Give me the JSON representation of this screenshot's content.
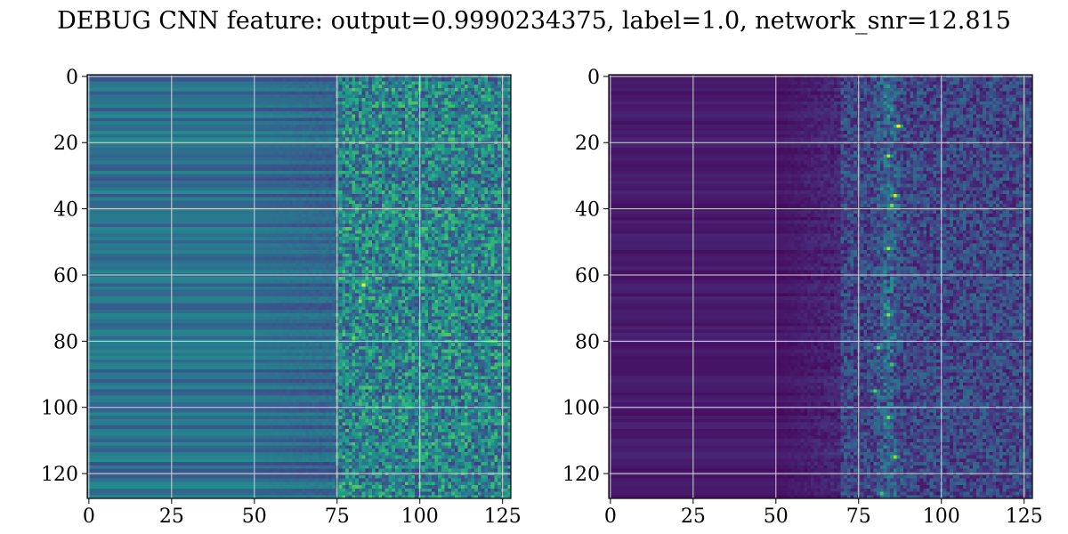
{
  "figure": {
    "title": "DEBUG CNN feature: output=0.9990234375, label=1.0, network_snr=12.815"
  },
  "chart_data": [
    {
      "type": "heatmap",
      "title": "",
      "xlabel": "",
      "ylabel": "",
      "xlim": [
        0,
        128
      ],
      "ylim": [
        128,
        0
      ],
      "xticks": [
        "0",
        "25",
        "50",
        "75",
        "100",
        "125"
      ],
      "yticks": [
        "0",
        "20",
        "40",
        "60",
        "80",
        "100",
        "120"
      ],
      "grid": true,
      "colormap": "viridis",
      "rows": 128,
      "cols": 128,
      "description_of_values": {
        "cols_0_to_70_level": 0.35,
        "noise_region_starts_col": 75,
        "noise_region_level": 0.45,
        "hot_spots": [
          {
            "row": 63,
            "col": 83,
            "value": 1.0
          },
          {
            "row": 68,
            "col": 82,
            "value": 0.85
          },
          {
            "row": 79,
            "col": 80,
            "value": 0.8
          },
          {
            "row": 3,
            "col": 88,
            "value": 0.7
          },
          {
            "row": 3,
            "col": 104,
            "value": 0.65
          },
          {
            "row": 42,
            "col": 88,
            "value": 0.7
          },
          {
            "row": 52,
            "col": 87,
            "value": 0.7
          },
          {
            "row": 103,
            "col": 88,
            "value": 0.75
          },
          {
            "row": 16,
            "col": 79,
            "value": 0.7
          }
        ]
      }
    },
    {
      "type": "heatmap",
      "title": "",
      "xlabel": "",
      "ylabel": "",
      "xlim": [
        0,
        128
      ],
      "ylim": [
        128,
        0
      ],
      "xticks": [
        "0",
        "25",
        "50",
        "75",
        "100",
        "125"
      ],
      "yticks": [
        "0",
        "20",
        "40",
        "60",
        "80",
        "100",
        "120"
      ],
      "grid": true,
      "colormap": "viridis",
      "rows": 128,
      "cols": 128,
      "description_of_values": {
        "cols_0_to_50_level": 0.05,
        "noise_region_starts_col": 70,
        "noise_region_level": 0.15,
        "track_center_col": 84,
        "hot_spots": [
          {
            "row": 15,
            "col": 87,
            "value": 1.0
          },
          {
            "row": 24,
            "col": 84,
            "value": 0.9
          },
          {
            "row": 36,
            "col": 86,
            "value": 0.95
          },
          {
            "row": 39,
            "col": 85,
            "value": 0.8
          },
          {
            "row": 52,
            "col": 84,
            "value": 0.9
          },
          {
            "row": 72,
            "col": 84,
            "value": 0.85
          },
          {
            "row": 82,
            "col": 81,
            "value": 0.75
          },
          {
            "row": 87,
            "col": 85,
            "value": 0.7
          },
          {
            "row": 95,
            "col": 80,
            "value": 0.75
          },
          {
            "row": 103,
            "col": 84,
            "value": 0.8
          },
          {
            "row": 115,
            "col": 86,
            "value": 0.85
          },
          {
            "row": 126,
            "col": 82,
            "value": 0.7
          }
        ]
      }
    }
  ]
}
